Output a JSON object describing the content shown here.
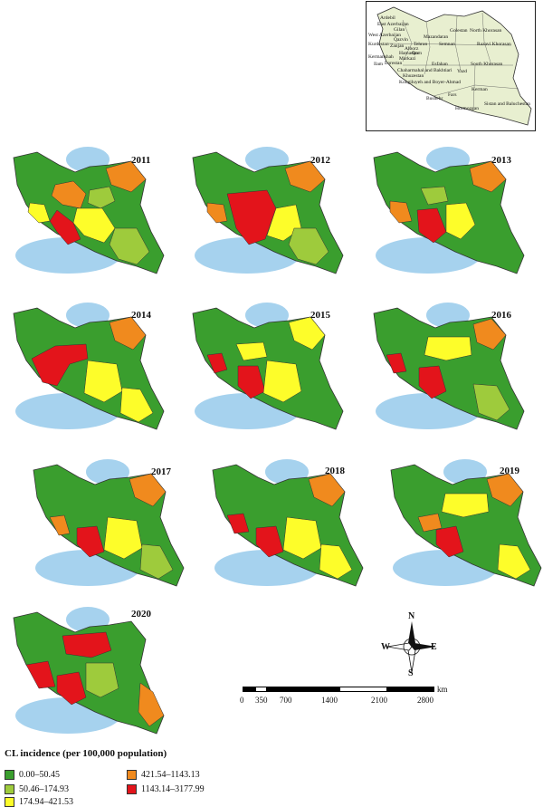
{
  "inset_map": {
    "provinces": [
      "Ardebil",
      "East Azerbaijan",
      "West Azerbaijan",
      "Gilan",
      "Golestan",
      "North Khorasan",
      "Mazandaran",
      "Qazvin",
      "Zanjan",
      "Tehran",
      "Alborz",
      "Semnan",
      "Razavi Khorasan",
      "Kurdestan",
      "Hamadan",
      "Markazi",
      "Qom",
      "Kermanshah",
      "Ilam",
      "Lorestan",
      "Esfahan",
      "South Khorasan",
      "Yazd",
      "Chaharmahal and Bakhtiari",
      "Khuzestan",
      "Kohgiluyeh and Boyer-Ahmad",
      "Kerman",
      "Fars",
      "Bushehr",
      "Hormozgan",
      "Sistan and Baluchestan"
    ]
  },
  "years": [
    "2011",
    "2012",
    "2013",
    "2014",
    "2015",
    "2016",
    "2017",
    "2018",
    "2019",
    "2020"
  ],
  "legend": {
    "title": "CL incidence (per 100,000 population)",
    "classes": [
      {
        "label": "0.00–50.45",
        "color": "#3a9e2e"
      },
      {
        "label": "50.46–174.93",
        "color": "#9ecb3c"
      },
      {
        "label": "174.94–421.53",
        "color": "#fdfd2a"
      },
      {
        "label": "421.54–1143.13",
        "color": "#f08a1e"
      },
      {
        "label": "1143.14–3177.99",
        "color": "#e3141b"
      }
    ]
  },
  "compass": {
    "n": "N",
    "s": "S",
    "e": "E",
    "w": "W"
  },
  "scale": {
    "ticks": [
      "0",
      "350",
      "700",
      "1400",
      "2100",
      "2800"
    ],
    "unit": "km"
  },
  "colors": {
    "water": "#a6d2ee",
    "outline": "#333333",
    "inset_fill": "#e8efd0"
  }
}
